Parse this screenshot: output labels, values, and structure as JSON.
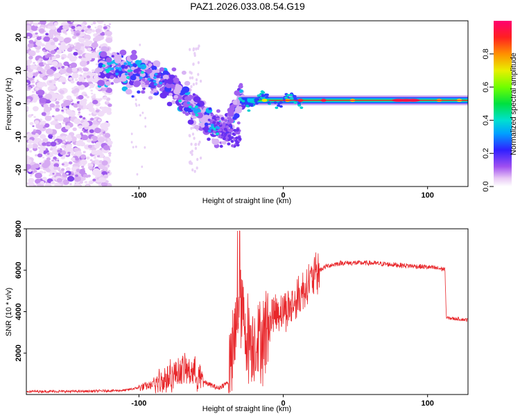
{
  "title": "PAZ1.2026.033.08.54.G19",
  "chart_data": [
    {
      "type": "heatmap",
      "xlabel": "Height of straight line (km)",
      "ylabel": "Frequency (Hz)",
      "xlim": [
        -178,
        128
      ],
      "ylim": [
        -25,
        25
      ],
      "xticks": [
        -100,
        0,
        100
      ],
      "yticks": [
        -20,
        -10,
        0,
        10,
        20
      ],
      "colorbar": {
        "label": "Normalized spectral amplitude",
        "range": [
          0,
          1
        ],
        "ticks": [
          "0.0",
          "0.2",
          "0.4",
          "0.6",
          "0.8"
        ]
      },
      "ridge": {
        "x": [
          -125,
          -110,
          -95,
          -80,
          -70,
          -60,
          -50,
          -40,
          -30,
          -20,
          -10,
          0,
          20,
          50,
          80,
          128
        ],
        "freq": [
          11,
          10,
          9,
          6,
          2,
          -2,
          -6,
          -9,
          2,
          1,
          2,
          2,
          1,
          1,
          1,
          1
        ]
      }
    },
    {
      "type": "line",
      "xlabel": "Height of straight line (km)",
      "ylabel": "SNR (10 * v/v)",
      "xlim": [
        -178,
        128
      ],
      "ylim": [
        0,
        8000
      ],
      "xticks": [
        -100,
        0,
        100
      ],
      "yticks": [
        2000,
        4000,
        6000,
        8000
      ],
      "color": "#e8262a",
      "profile": {
        "x": [
          -178,
          -140,
          -110,
          -95,
          -88,
          -80,
          -70,
          -62,
          -55,
          -45,
          -38,
          -33,
          -30,
          -25,
          -20,
          -15,
          -10,
          -5,
          0,
          5,
          10,
          15,
          20,
          25,
          30,
          40,
          60,
          80,
          100,
          112,
          113,
          128
        ],
        "snr": [
          150,
          150,
          200,
          400,
          500,
          800,
          1200,
          1100,
          600,
          300,
          600,
          3000,
          4500,
          2800,
          2600,
          2700,
          3500,
          4000,
          4100,
          4200,
          4600,
          5200,
          5600,
          6000,
          6200,
          6350,
          6350,
          6250,
          6150,
          6050,
          3700,
          3600
        ]
      }
    }
  ]
}
